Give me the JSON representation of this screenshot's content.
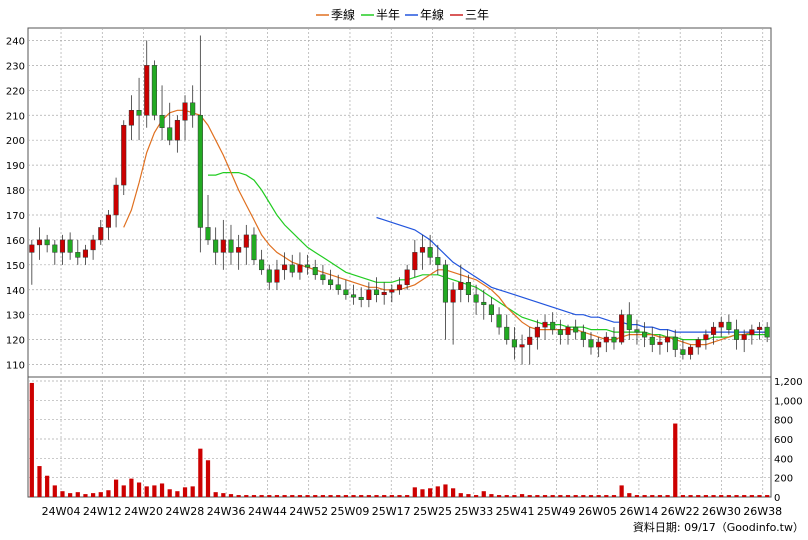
{
  "chart_data": {
    "type": "candlestick",
    "legend": [
      {
        "name": "季線",
        "color": "#e07020"
      },
      {
        "name": "半年",
        "color": "#22cc22"
      },
      {
        "name": "年線",
        "color": "#2255dd"
      },
      {
        "name": "三年",
        "color": "#cc2222"
      }
    ],
    "price_axis": {
      "min": 105,
      "max": 245,
      "ticks": [
        110,
        120,
        130,
        140,
        150,
        160,
        170,
        180,
        190,
        200,
        210,
        220,
        230,
        240
      ]
    },
    "volume_axis": {
      "min": 0,
      "max": 1200,
      "ticks": [
        0,
        200,
        400,
        600,
        800,
        1000,
        1200
      ],
      "tick_labels": [
        "0",
        "200",
        "400",
        "600",
        "800",
        "1,000",
        "1,200"
      ]
    },
    "x_labels": [
      "24W04",
      "24W12",
      "24W20",
      "24W28",
      "24W36",
      "24W44",
      "24W52",
      "25W09",
      "25W17",
      "25W25",
      "25W33",
      "25W41",
      "25W49",
      "26W05",
      "26W14",
      "26W22",
      "26W30",
      "26W38"
    ],
    "footer_text": "資料日期: 09/17（Goodinfo.tw）",
    "colors": {
      "up": "#cc0000",
      "down": "#22aa22",
      "volume": "#cc0000",
      "grid": "#aaaaaa"
    },
    "candles": [
      [
        155,
        160,
        142,
        158
      ],
      [
        158,
        165,
        152,
        160
      ],
      [
        160,
        162,
        155,
        158
      ],
      [
        158,
        160,
        150,
        155
      ],
      [
        155,
        162,
        150,
        160
      ],
      [
        160,
        163,
        152,
        155
      ],
      [
        155,
        160,
        150,
        153
      ],
      [
        153,
        158,
        150,
        156
      ],
      [
        156,
        162,
        152,
        160
      ],
      [
        160,
        168,
        158,
        165
      ],
      [
        165,
        172,
        160,
        170
      ],
      [
        170,
        185,
        165,
        182
      ],
      [
        182,
        208,
        178,
        206
      ],
      [
        206,
        218,
        200,
        212
      ],
      [
        212,
        225,
        200,
        210
      ],
      [
        210,
        240,
        205,
        230
      ],
      [
        230,
        232,
        208,
        210
      ],
      [
        210,
        222,
        200,
        205
      ],
      [
        205,
        215,
        198,
        200
      ],
      [
        200,
        210,
        195,
        208
      ],
      [
        208,
        218,
        200,
        215
      ],
      [
        215,
        222,
        205,
        210
      ],
      [
        210,
        242,
        155,
        165
      ],
      [
        165,
        178,
        158,
        160
      ],
      [
        160,
        165,
        150,
        155
      ],
      [
        155,
        168,
        148,
        160
      ],
      [
        160,
        166,
        150,
        155
      ],
      [
        155,
        162,
        148,
        157
      ],
      [
        157,
        166,
        150,
        162
      ],
      [
        162,
        165,
        150,
        152
      ],
      [
        152,
        156,
        146,
        148
      ],
      [
        148,
        150,
        140,
        143
      ],
      [
        143,
        152,
        140,
        148
      ],
      [
        148,
        155,
        144,
        150
      ],
      [
        150,
        154,
        145,
        147
      ],
      [
        147,
        155,
        144,
        150
      ],
      [
        150,
        154,
        146,
        149
      ],
      [
        149,
        152,
        144,
        146
      ],
      [
        146,
        150,
        142,
        144
      ],
      [
        144,
        148,
        140,
        142
      ],
      [
        142,
        146,
        138,
        140
      ],
      [
        140,
        144,
        136,
        138
      ],
      [
        138,
        142,
        134,
        137
      ],
      [
        137,
        141,
        133,
        136
      ],
      [
        136,
        143,
        133,
        140
      ],
      [
        140,
        145,
        135,
        138
      ],
      [
        138,
        143,
        134,
        139
      ],
      [
        139,
        142,
        135,
        140
      ],
      [
        140,
        145,
        138,
        142
      ],
      [
        142,
        150,
        140,
        148
      ],
      [
        148,
        160,
        145,
        155
      ],
      [
        155,
        162,
        148,
        157
      ],
      [
        157,
        162,
        150,
        153
      ],
      [
        153,
        158,
        146,
        150
      ],
      [
        150,
        152,
        120,
        135
      ],
      [
        135,
        143,
        118,
        140
      ],
      [
        140,
        150,
        135,
        143
      ],
      [
        143,
        146,
        135,
        138
      ],
      [
        138,
        142,
        130,
        135
      ],
      [
        135,
        140,
        128,
        134
      ],
      [
        134,
        137,
        127,
        130
      ],
      [
        130,
        133,
        122,
        125
      ],
      [
        125,
        130,
        118,
        120
      ],
      [
        120,
        125,
        112,
        117
      ],
      [
        117,
        122,
        110,
        118
      ],
      [
        118,
        125,
        110,
        121
      ],
      [
        121,
        128,
        116,
        125
      ],
      [
        125,
        130,
        120,
        127
      ],
      [
        127,
        131,
        122,
        124
      ],
      [
        124,
        128,
        118,
        122
      ],
      [
        122,
        126,
        118,
        125
      ],
      [
        125,
        128,
        120,
        123
      ],
      [
        123,
        126,
        117,
        120
      ],
      [
        120,
        123,
        114,
        117
      ],
      [
        117,
        121,
        113,
        119
      ],
      [
        119,
        123,
        115,
        121
      ],
      [
        121,
        125,
        116,
        119
      ],
      [
        119,
        132,
        118,
        130
      ],
      [
        130,
        135,
        120,
        124
      ],
      [
        124,
        128,
        118,
        123
      ],
      [
        123,
        127,
        117,
        121
      ],
      [
        121,
        125,
        115,
        118
      ],
      [
        118,
        122,
        114,
        119
      ],
      [
        119,
        124,
        115,
        121
      ],
      [
        121,
        124,
        113,
        116
      ],
      [
        116,
        120,
        112,
        114
      ],
      [
        114,
        118,
        112,
        117
      ],
      [
        117,
        121,
        114,
        120
      ],
      [
        120,
        124,
        116,
        122
      ],
      [
        122,
        127,
        118,
        125
      ],
      [
        125,
        129,
        121,
        127
      ],
      [
        127,
        130,
        122,
        124
      ],
      [
        124,
        128,
        116,
        120
      ],
      [
        120,
        124,
        115,
        122
      ],
      [
        122,
        126,
        118,
        124
      ],
      [
        124,
        127,
        120,
        125
      ],
      [
        125,
        127,
        119,
        121
      ]
    ],
    "volume": [
      1180,
      320,
      220,
      120,
      60,
      40,
      50,
      30,
      40,
      50,
      70,
      180,
      120,
      190,
      150,
      110,
      120,
      140,
      80,
      60,
      100,
      110,
      500,
      380,
      50,
      40,
      30,
      20,
      20,
      20,
      20,
      20,
      20,
      20,
      20,
      20,
      20,
      20,
      20,
      20,
      20,
      20,
      20,
      20,
      20,
      20,
      20,
      20,
      20,
      20,
      100,
      80,
      90,
      110,
      130,
      90,
      40,
      30,
      20,
      60,
      30,
      20,
      20,
      20,
      30,
      20,
      20,
      20,
      20,
      20,
      20,
      20,
      20,
      20,
      20,
      20,
      20,
      120,
      40,
      20,
      20,
      20,
      20,
      20,
      760,
      20,
      20,
      20,
      20,
      20,
      20,
      20,
      20,
      20,
      20,
      20,
      20
    ],
    "ma_quarter": [
      null,
      null,
      null,
      null,
      null,
      null,
      null,
      null,
      null,
      null,
      null,
      null,
      165,
      172,
      183,
      195,
      203,
      208,
      211,
      212,
      212,
      211,
      210,
      206,
      200,
      194,
      187,
      180,
      174,
      168,
      162,
      158,
      155,
      153,
      151,
      150,
      149,
      148,
      147,
      146,
      145,
      144,
      143,
      142,
      141,
      141,
      140,
      140,
      140,
      141,
      142,
      144,
      146,
      148,
      148,
      147,
      146,
      145,
      144,
      142,
      140,
      137,
      133,
      130,
      127,
      125,
      124,
      124,
      124,
      124,
      124,
      124,
      123,
      122,
      121,
      120,
      120,
      121,
      122,
      122,
      122,
      122,
      121,
      121,
      120,
      119,
      118,
      118,
      118,
      119,
      120,
      121,
      122,
      122,
      123,
      123,
      123
    ],
    "ma_half": [
      null,
      null,
      null,
      null,
      null,
      null,
      null,
      null,
      null,
      null,
      null,
      null,
      null,
      null,
      null,
      null,
      null,
      null,
      null,
      null,
      null,
      null,
      null,
      186,
      186,
      187,
      187,
      187,
      186,
      184,
      180,
      175,
      170,
      166,
      163,
      160,
      157,
      155,
      153,
      151,
      149,
      147,
      146,
      145,
      144,
      143,
      143,
      143,
      144,
      144,
      145,
      146,
      146,
      146,
      145,
      144,
      143,
      142,
      141,
      139,
      137,
      135,
      133,
      131,
      129,
      128,
      127,
      126,
      126,
      126,
      125,
      125,
      125,
      124,
      124,
      124,
      123,
      123,
      123,
      123,
      123,
      122,
      122,
      121,
      121,
      120,
      120,
      120,
      120,
      121,
      121,
      121,
      122,
      122,
      122,
      122,
      122
    ],
    "ma_year": [
      null,
      null,
      null,
      null,
      null,
      null,
      null,
      null,
      null,
      null,
      null,
      null,
      null,
      null,
      null,
      null,
      null,
      null,
      null,
      null,
      null,
      null,
      null,
      null,
      null,
      null,
      null,
      null,
      null,
      null,
      null,
      null,
      null,
      null,
      null,
      null,
      null,
      null,
      null,
      null,
      null,
      null,
      null,
      null,
      null,
      169,
      168,
      167,
      166,
      165,
      164,
      162,
      160,
      157,
      154,
      151,
      149,
      147,
      145,
      143,
      141,
      140,
      139,
      138,
      137,
      136,
      135,
      134,
      133,
      132,
      131,
      130,
      130,
      129,
      129,
      128,
      127,
      127,
      126,
      126,
      125,
      125,
      124,
      124,
      123,
      123,
      123,
      123,
      123,
      123,
      123,
      123,
      123,
      123,
      123,
      123,
      123
    ]
  }
}
